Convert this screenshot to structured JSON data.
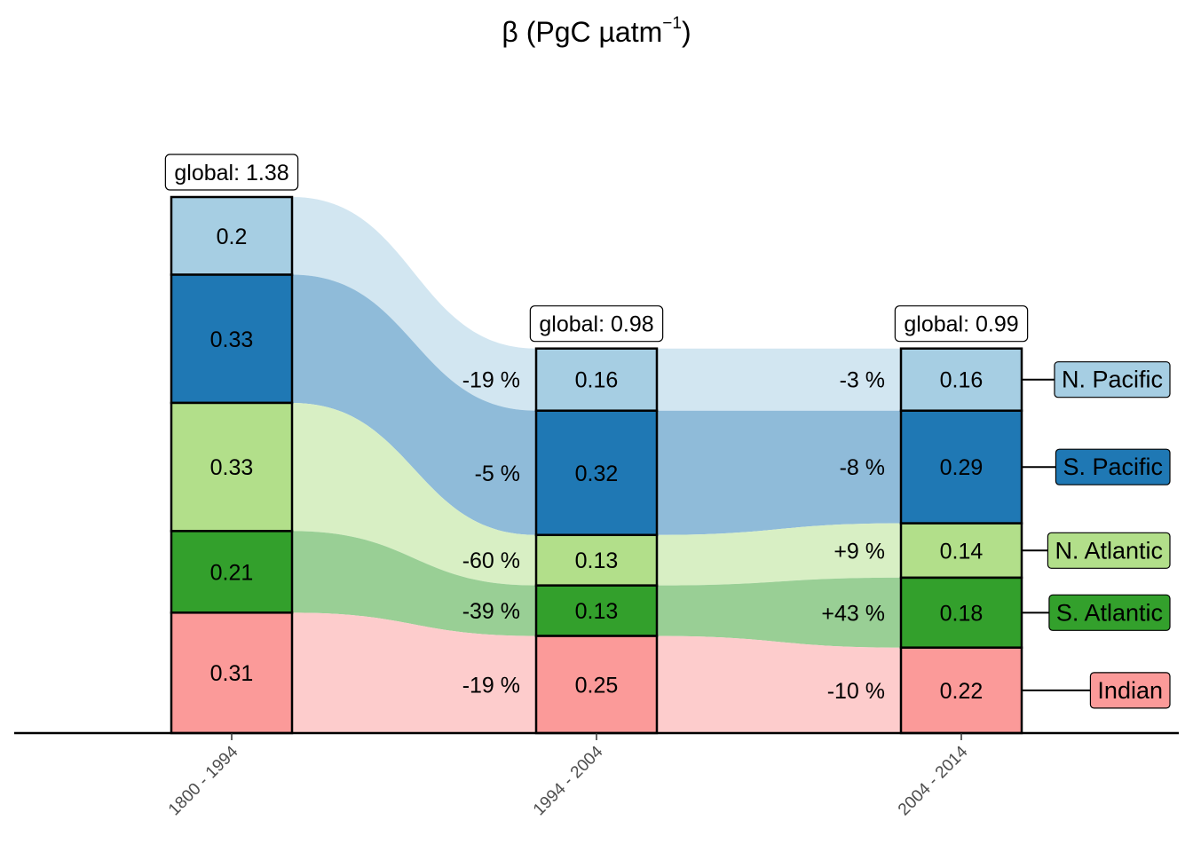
{
  "chart_data": {
    "type": "bar",
    "title_symbol": "β (PgC µatm",
    "title_exp": "−1",
    "title_close": ")",
    "categories": [
      "1800 - 1994",
      "1994 - 2004",
      "2004 - 2014"
    ],
    "totals": [
      "global: 1.38",
      "global: 0.98",
      "global: 0.99"
    ],
    "total_values": [
      1.38,
      0.98,
      0.99
    ],
    "series": [
      {
        "name": "N. Pacific",
        "values": [
          0.2,
          0.16,
          0.16
        ],
        "labels": [
          "0.2",
          "0.16",
          "0.16"
        ],
        "color": "#a6cee3",
        "flow_color": "#d2e6f1",
        "changes": [
          "-19 %",
          "-3 %"
        ]
      },
      {
        "name": "S. Pacific",
        "values": [
          0.33,
          0.32,
          0.29
        ],
        "labels": [
          "0.33",
          "0.32",
          "0.29"
        ],
        "color": "#1f78b4",
        "flow_color": "#8fbbd9",
        "changes": [
          "-5 %",
          "-8 %"
        ]
      },
      {
        "name": "N. Atlantic",
        "values": [
          0.33,
          0.13,
          0.14
        ],
        "labels": [
          "0.33",
          "0.13",
          "0.14"
        ],
        "color": "#b2df8a",
        "flow_color": "#d8efc4",
        "changes": [
          "-60 %",
          "+9 %"
        ]
      },
      {
        "name": "S. Atlantic",
        "values": [
          0.21,
          0.13,
          0.18
        ],
        "labels": [
          "0.21",
          "0.13",
          "0.18"
        ],
        "color": "#33a02c",
        "flow_color": "#99cf95",
        "changes": [
          "-39 %",
          "+43 %"
        ]
      },
      {
        "name": "Indian",
        "values": [
          0.31,
          0.25,
          0.22
        ],
        "labels": [
          "0.31",
          "0.25",
          "0.22"
        ],
        "color": "#fb9a99",
        "flow_color": "#fdcccc",
        "changes": [
          "-19 %",
          "-10 %"
        ]
      }
    ],
    "stack_order": "top-to-bottom",
    "ylim": [
      0,
      1.38
    ],
    "grid": false,
    "legend": "right"
  }
}
